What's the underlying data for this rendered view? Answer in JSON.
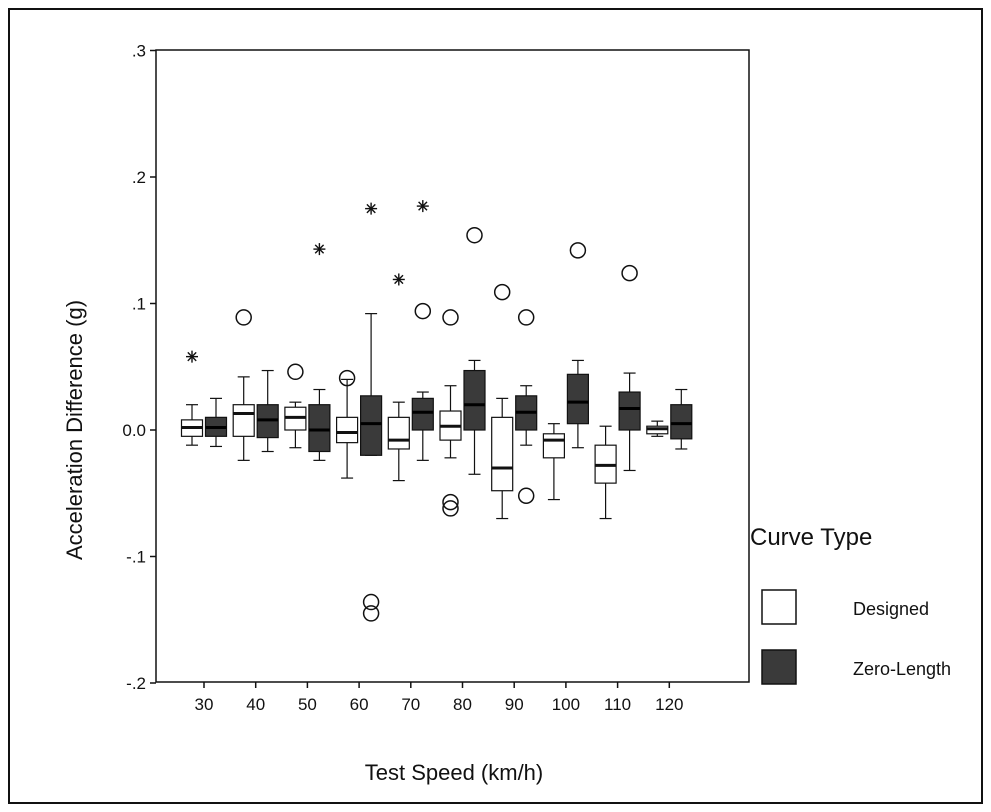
{
  "chart_data": {
    "type": "box",
    "xlabel": "Test Speed (km/h)",
    "ylabel": "Acceleration Difference (g)",
    "categories": [
      "30",
      "40",
      "50",
      "60",
      "70",
      "80",
      "90",
      "100",
      "110",
      "120"
    ],
    "ylim": [
      -0.2,
      0.3
    ],
    "yticks": [
      ".3",
      ".2",
      ".1",
      "0.0",
      "-.1",
      "-.2"
    ],
    "ytick_values": [
      0.3,
      0.2,
      0.1,
      0.0,
      -0.1,
      -0.2
    ],
    "grid": false,
    "legend": {
      "title": "Curve Type",
      "position": "right",
      "entries": [
        {
          "label": "Designed",
          "color": "#ffffff"
        },
        {
          "label": "Zero-Length",
          "color": "#3a3a3a"
        }
      ]
    },
    "series": [
      {
        "name": "Designed",
        "color": "#ffffff",
        "boxes": [
          {
            "category": "30",
            "whisker_low": -0.012,
            "q1": -0.005,
            "median": 0.002,
            "q3": 0.008,
            "whisker_high": 0.02
          },
          {
            "category": "40",
            "whisker_low": -0.024,
            "q1": -0.005,
            "median": 0.013,
            "q3": 0.02,
            "whisker_high": 0.042
          },
          {
            "category": "50",
            "whisker_low": -0.014,
            "q1": 0.0,
            "median": 0.01,
            "q3": 0.018,
            "whisker_high": 0.022
          },
          {
            "category": "60",
            "whisker_low": -0.038,
            "q1": -0.01,
            "median": -0.002,
            "q3": 0.01,
            "whisker_high": 0.04
          },
          {
            "category": "70",
            "whisker_low": -0.04,
            "q1": -0.015,
            "median": -0.008,
            "q3": 0.01,
            "whisker_high": 0.022
          },
          {
            "category": "80",
            "whisker_low": -0.022,
            "q1": -0.008,
            "median": 0.003,
            "q3": 0.015,
            "whisker_high": 0.035
          },
          {
            "category": "90",
            "whisker_low": -0.07,
            "q1": -0.048,
            "median": -0.03,
            "q3": 0.01,
            "whisker_high": 0.025
          },
          {
            "category": "100",
            "whisker_low": -0.055,
            "q1": -0.022,
            "median": -0.008,
            "q3": -0.003,
            "whisker_high": 0.005
          },
          {
            "category": "110",
            "whisker_low": -0.07,
            "q1": -0.042,
            "median": -0.028,
            "q3": -0.012,
            "whisker_high": 0.003
          },
          {
            "category": "120",
            "whisker_low": -0.005,
            "q1": -0.003,
            "median": 0.001,
            "q3": 0.003,
            "whisker_high": 0.007
          }
        ],
        "outliers": [
          {
            "category": "40",
            "value": 0.089
          },
          {
            "category": "50",
            "value": 0.046
          },
          {
            "category": "60",
            "value": 0.041
          },
          {
            "category": "80",
            "value": 0.089
          },
          {
            "category": "80",
            "value": -0.057
          },
          {
            "category": "80",
            "value": -0.062
          },
          {
            "category": "90",
            "value": 0.109
          }
        ],
        "extremes": [
          {
            "category": "30",
            "value": 0.058
          },
          {
            "category": "70",
            "value": 0.119
          }
        ]
      },
      {
        "name": "Zero-Length",
        "color": "#3a3a3a",
        "boxes": [
          {
            "category": "30",
            "whisker_low": -0.013,
            "q1": -0.005,
            "median": 0.002,
            "q3": 0.01,
            "whisker_high": 0.025
          },
          {
            "category": "40",
            "whisker_low": -0.017,
            "q1": -0.006,
            "median": 0.008,
            "q3": 0.02,
            "whisker_high": 0.047
          },
          {
            "category": "50",
            "whisker_low": -0.024,
            "q1": -0.017,
            "median": 0.0,
            "q3": 0.02,
            "whisker_high": 0.032
          },
          {
            "category": "60",
            "whisker_low": -0.02,
            "q1": -0.02,
            "median": 0.005,
            "q3": 0.027,
            "whisker_high": 0.092
          },
          {
            "category": "70",
            "whisker_low": -0.024,
            "q1": 0.0,
            "median": 0.014,
            "q3": 0.025,
            "whisker_high": 0.03
          },
          {
            "category": "80",
            "whisker_low": -0.035,
            "q1": 0.0,
            "median": 0.02,
            "q3": 0.047,
            "whisker_high": 0.055
          },
          {
            "category": "90",
            "whisker_low": -0.012,
            "q1": 0.0,
            "median": 0.014,
            "q3": 0.027,
            "whisker_high": 0.035
          },
          {
            "category": "100",
            "whisker_low": -0.014,
            "q1": 0.005,
            "median": 0.022,
            "q3": 0.044,
            "whisker_high": 0.055
          },
          {
            "category": "110",
            "whisker_low": -0.032,
            "q1": 0.0,
            "median": 0.017,
            "q3": 0.03,
            "whisker_high": 0.045
          },
          {
            "category": "120",
            "whisker_low": -0.015,
            "q1": -0.007,
            "median": 0.005,
            "q3": 0.02,
            "whisker_high": 0.032
          }
        ],
        "outliers": [
          {
            "category": "60",
            "value": -0.136
          },
          {
            "category": "60",
            "value": -0.145
          },
          {
            "category": "70",
            "value": 0.094
          },
          {
            "category": "80",
            "value": 0.154
          },
          {
            "category": "90",
            "value": 0.089
          },
          {
            "category": "90",
            "value": -0.052
          },
          {
            "category": "100",
            "value": 0.142
          },
          {
            "category": "110",
            "value": 0.124
          }
        ],
        "extremes": [
          {
            "category": "50",
            "value": 0.143
          },
          {
            "category": "60",
            "value": 0.175
          },
          {
            "category": "70",
            "value": 0.177
          }
        ]
      }
    ]
  }
}
